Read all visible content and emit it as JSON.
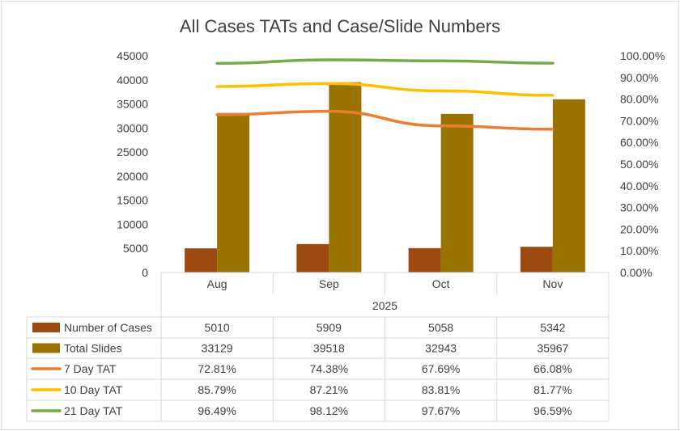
{
  "chart_data": {
    "type": "bar",
    "title": "All Cases TATs and Case/Slide Numbers",
    "categories": [
      "Aug",
      "Sep",
      "Oct",
      "Nov"
    ],
    "category_group": "2025",
    "y_left": {
      "min": 0,
      "max": 45000,
      "step": 5000,
      "ticks": [
        "0",
        "5000",
        "10000",
        "15000",
        "20000",
        "25000",
        "30000",
        "35000",
        "40000",
        "45000"
      ]
    },
    "y_right": {
      "min": 0,
      "max": 1,
      "step": 0.1,
      "ticks": [
        "0.00%",
        "10.00%",
        "20.00%",
        "30.00%",
        "40.00%",
        "50.00%",
        "60.00%",
        "70.00%",
        "80.00%",
        "90.00%",
        "100.00%"
      ]
    },
    "grid": false,
    "legend": "data-table",
    "series": [
      {
        "name": "Number of Cases",
        "kind": "bar",
        "axis": "left",
        "color": "#9c4a10",
        "values": [
          5010,
          5909,
          5058,
          5342
        ],
        "labels": [
          "5010",
          "5909",
          "5058",
          "5342"
        ]
      },
      {
        "name": "Total Slides",
        "kind": "bar",
        "axis": "left",
        "color": "#987300",
        "values": [
          33129,
          39518,
          32943,
          35967
        ],
        "labels": [
          "33129",
          "39518",
          "32943",
          "35967"
        ]
      },
      {
        "name": "7 Day TAT",
        "kind": "line",
        "axis": "right",
        "color": "#ed7d31",
        "values": [
          0.7281,
          0.7438,
          0.6769,
          0.6608
        ],
        "labels": [
          "72.81%",
          "74.38%",
          "67.69%",
          "66.08%"
        ]
      },
      {
        "name": "10 Day TAT",
        "kind": "line",
        "axis": "right",
        "color": "#ffc000",
        "values": [
          0.8579,
          0.8721,
          0.8381,
          0.8177
        ],
        "labels": [
          "85.79%",
          "87.21%",
          "83.81%",
          "81.77%"
        ]
      },
      {
        "name": "21 Day TAT",
        "kind": "line",
        "axis": "right",
        "color": "#70ad47",
        "values": [
          0.9649,
          0.9812,
          0.9767,
          0.9659
        ],
        "labels": [
          "96.49%",
          "98.12%",
          "97.67%",
          "96.59%"
        ]
      }
    ]
  }
}
